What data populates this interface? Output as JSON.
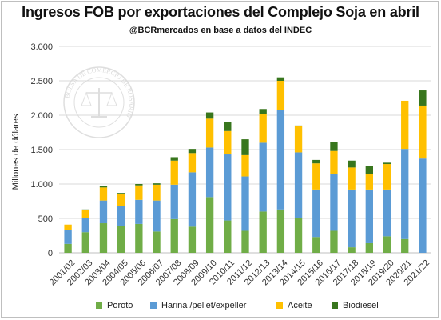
{
  "chart_data": {
    "type": "bar",
    "stacked": true,
    "title": "Ingresos FOB por exportaciones del Complejo Soja en abril",
    "subtitle": "@BCRmercados en base a datos del INDEC",
    "ylabel": "Millones de dólares",
    "xlabel": "",
    "ylim": [
      0,
      3000
    ],
    "yticks": [
      0,
      500,
      1000,
      1500,
      2000,
      2500,
      3000
    ],
    "ytick_labels": [
      "0",
      "500",
      "1.000",
      "1.500",
      "2.000",
      "2.500",
      "3.000"
    ],
    "grid": true,
    "legend_position": "bottom",
    "categories": [
      "2001/02",
      "2002/03",
      "2003/04",
      "2004/05",
      "2005/06",
      "2006/07",
      "2007/08",
      "2008/09",
      "2009/10",
      "2010/11",
      "2011/12",
      "2012/13",
      "2013/14",
      "2014/15",
      "2015/16",
      "2016/17",
      "2017/18",
      "2018/19",
      "2019/20",
      "2020/21",
      "2021/22"
    ],
    "series": [
      {
        "name": "Poroto",
        "color": "#70ad47",
        "values": [
          130,
          300,
          430,
          390,
          420,
          310,
          490,
          380,
          810,
          470,
          320,
          600,
          630,
          500,
          230,
          320,
          80,
          140,
          240,
          200,
          0
        ]
      },
      {
        "name": "Harina /pellet/expeller",
        "color": "#5b9bd5",
        "values": [
          200,
          200,
          330,
          290,
          350,
          450,
          500,
          790,
          720,
          960,
          790,
          1000,
          1450,
          960,
          690,
          820,
          840,
          780,
          680,
          1310,
          1370
        ]
      },
      {
        "name": "Aceite",
        "color": "#ffc000",
        "values": [
          80,
          120,
          190,
          180,
          210,
          230,
          350,
          280,
          420,
          340,
          310,
          420,
          420,
          380,
          380,
          340,
          320,
          220,
          370,
          700,
          770
        ]
      },
      {
        "name": "Biodiesel",
        "color": "#38761d",
        "values": [
          0,
          10,
          20,
          10,
          20,
          20,
          50,
          60,
          90,
          130,
          230,
          70,
          50,
          10,
          50,
          130,
          100,
          120,
          20,
          0,
          220
        ]
      }
    ]
  },
  "watermark": {
    "top_text": "BOLSA DE COMERCIO DE ROSARIO"
  }
}
